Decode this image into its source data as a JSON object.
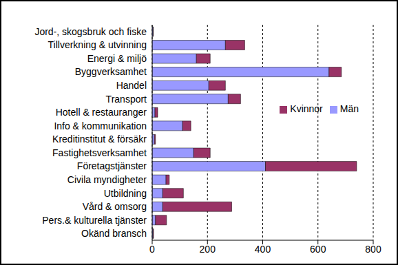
{
  "chart_data": {
    "type": "bar",
    "orientation": "horizontal",
    "stacked": true,
    "grid": true,
    "legend": "right",
    "categories": [
      "Jord-, skogsbruk och fiske",
      "Tillverkning & utvinning",
      "Energi & miljö",
      "Byggverksamhet",
      "Handel",
      "Transport",
      "Hotell & restauranger",
      "Info & kommunikation",
      "Kreditinstitut & försäkr",
      "Fastighetsverksamhet",
      "Företagstjänster",
      "Civila myndigheter ",
      "Utbildning",
      "Vård & omsorg",
      "Pers.& kulturella tjänster",
      "Okänd bransch"
    ],
    "series": [
      {
        "name": "Män",
        "color": "#9999ff",
        "values": [
          3,
          265,
          160,
          640,
          205,
          275,
          10,
          110,
          8,
          150,
          410,
          50,
          38,
          38,
          12,
          3
        ]
      },
      {
        "name": "Kvinnor",
        "color": "#993366",
        "values": [
          1,
          70,
          50,
          45,
          60,
          45,
          10,
          30,
          4,
          60,
          330,
          12,
          75,
          250,
          40,
          2
        ]
      }
    ],
    "xlim": [
      0,
      800
    ],
    "xticks": [
      0,
      200,
      400,
      600,
      800
    ]
  }
}
